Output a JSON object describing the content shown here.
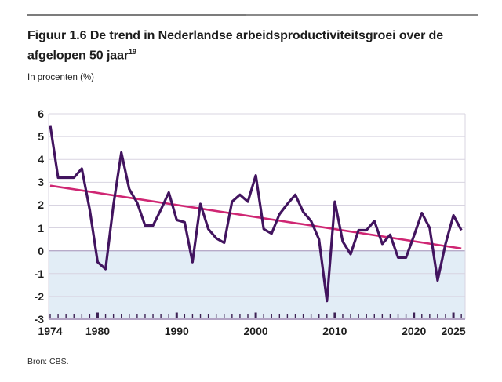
{
  "header": {
    "figure_label": "Figuur 1.6",
    "title_rest": " De trend in Nederlandse arbeidsproductiviteitsgroei over de afgelopen 50 jaar",
    "footnote_marker": "19",
    "subtitle": "In procenten (%)",
    "source": "Bron: CBS."
  },
  "colors": {
    "series_line": "#42145f",
    "trend_line": "#cf2673",
    "negative_area_fill": "#e2edf6",
    "gridline": "#d8d4e1",
    "zero_line": "#b7abc9",
    "axis_line": "#b2a4c4",
    "tick": "#3d2254",
    "text": "#1c1c1c",
    "divider": "#8a8a8a"
  },
  "chart_data": {
    "type": "line",
    "title": "Figuur 1.6 De trend in Nederlandse arbeidsproductiviteitsgroei over de afgelopen 50 jaar",
    "subtitle": "In procenten (%)",
    "source": "Bron: CBS.",
    "grid": true,
    "legend": "none",
    "xlim": [
      1974,
      2026.5
    ],
    "ylim": [
      -3,
      6
    ],
    "yticks": [
      6,
      5,
      4,
      3,
      2,
      1,
      0,
      -1,
      -2,
      -3
    ],
    "xtick_labels": [
      1974,
      1980,
      1990,
      2000,
      2010,
      2020,
      2025
    ],
    "bold_year_ticks": [
      1980,
      1990,
      2000,
      2010,
      2020,
      2025
    ],
    "year_tick_start": 1974,
    "year_tick_end": 2026,
    "negative_band": {
      "from": 0,
      "to": -3
    },
    "series": [
      {
        "name": "arbeidsproductiviteitsgroei",
        "start_year": 1974,
        "values": [
          5.5,
          3.2,
          3.2,
          3.2,
          3.6,
          1.8,
          -0.5,
          -0.8,
          2.0,
          4.3,
          2.7,
          2.1,
          1.1,
          1.1,
          1.8,
          2.55,
          1.35,
          1.25,
          -0.5,
          2.05,
          0.95,
          0.55,
          0.35,
          2.15,
          2.45,
          2.15,
          3.3,
          0.95,
          0.75,
          1.6,
          2.05,
          2.45,
          1.7,
          1.3,
          0.5,
          -2.2,
          2.15,
          0.4,
          -0.15,
          0.9,
          0.9,
          1.3,
          0.3,
          0.7,
          -0.3,
          -0.3,
          0.65,
          1.65,
          1.0,
          -1.3,
          0.3,
          1.55,
          0.9
        ]
      },
      {
        "name": "trendlijn",
        "x": [
          1974,
          2026
        ],
        "values": [
          2.85,
          0.1
        ]
      }
    ]
  }
}
